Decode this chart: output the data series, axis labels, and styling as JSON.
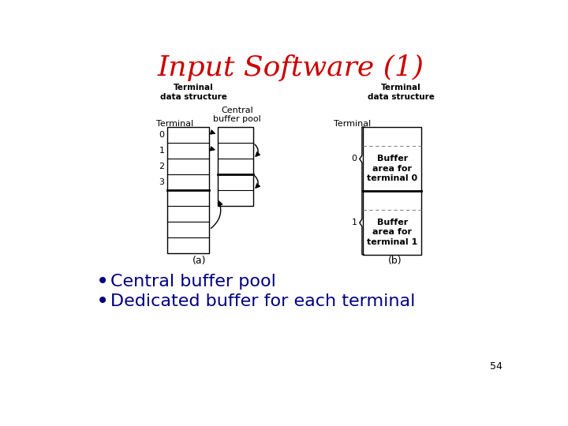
{
  "title": "Input Software (1)",
  "title_color": "#cc0000",
  "title_fontsize": 26,
  "bullet_color": "#000080",
  "bullet_fontsize": 16,
  "bullets": [
    "Central buffer pool",
    "Dedicated buffer for each terminal"
  ],
  "page_number": "54",
  "background_color": "#ffffff",
  "label_fontsize": 8,
  "small_fontsize": 7.5
}
